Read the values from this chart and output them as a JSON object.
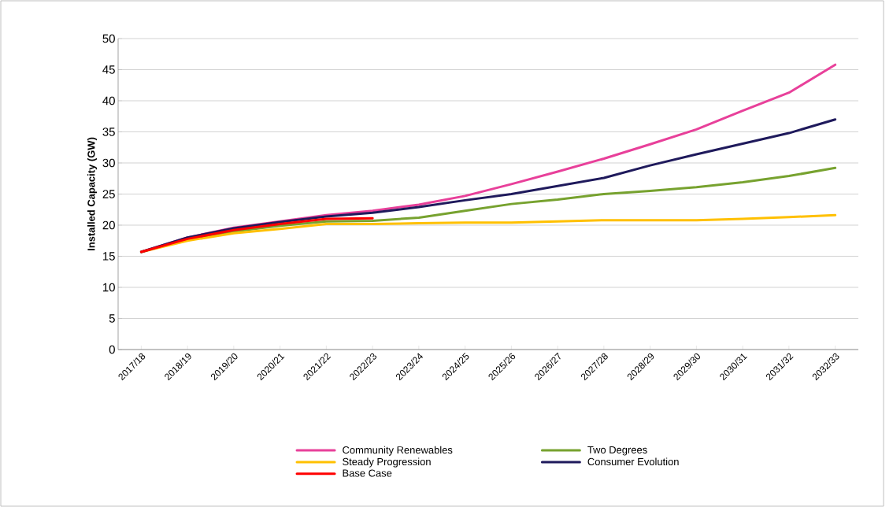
{
  "chart_data": {
    "type": "line",
    "ylabel": "Installed Capacity (GW)",
    "categories": [
      "2017/18",
      "2018/19",
      "2019/20",
      "2020/21",
      "2021/22",
      "2022/23",
      "2023/24",
      "2024/25",
      "2025/26",
      "2026/27",
      "2027/28",
      "2028/29",
      "2029/30",
      "2030/31",
      "2031/32",
      "2032/33"
    ],
    "series": [
      {
        "name": "Community Renewables",
        "color": "#e8409a",
        "values": [
          15.7,
          18,
          19.6,
          20.6,
          21.6,
          22.3,
          23.3,
          24.7,
          26.6,
          28.6,
          30.7,
          33,
          35.4,
          38.4,
          41.3,
          45.8
        ]
      },
      {
        "name": "Two Degrees",
        "color": "#77a22f",
        "values": [
          15.7,
          17.7,
          19,
          19.9,
          20.6,
          20.7,
          21.2,
          22.3,
          23.4,
          24.1,
          25,
          25.5,
          26.1,
          26.9,
          27.9,
          29.2
        ]
      },
      {
        "name": "Steady Progression",
        "color": "#ffc000",
        "values": [
          15.7,
          17.5,
          18.7,
          19.4,
          20.2,
          20.2,
          20.3,
          20.4,
          20.4,
          20.6,
          20.8,
          20.8,
          20.8,
          21,
          21.3,
          21.6
        ]
      },
      {
        "name": "Consumer Evolution",
        "color": "#1f1a5c",
        "values": [
          15.7,
          18,
          19.5,
          20.5,
          21.4,
          22,
          22.9,
          24,
          25,
          26.3,
          27.6,
          29.6,
          31.4,
          33.1,
          34.8,
          37
        ]
      },
      {
        "name": "Base Case",
        "color": "#ff0000",
        "values": [
          15.7,
          17.8,
          19.2,
          20.2,
          21,
          21.1,
          null,
          null,
          null,
          null,
          null,
          null,
          null,
          null,
          null,
          null
        ]
      }
    ],
    "ylim": [
      0,
      50
    ],
    "yticks": [
      0,
      5,
      10,
      15,
      20,
      25,
      30,
      35,
      40,
      45,
      50
    ],
    "grid": "y",
    "legend": "bottom"
  }
}
